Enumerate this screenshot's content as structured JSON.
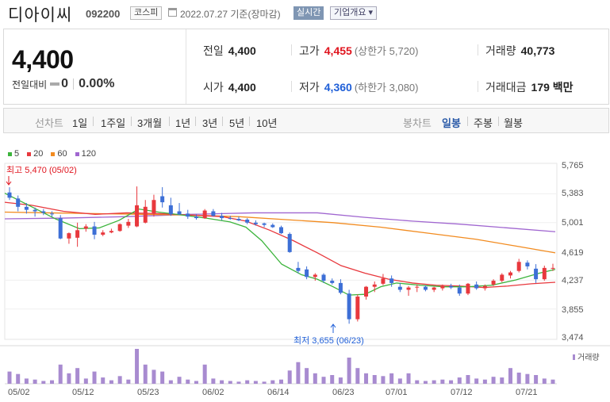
{
  "header": {
    "title": "디아이씨",
    "code": "092200",
    "market": "코스피",
    "date_text": "2022.07.27 기준(장마감)",
    "realtime_label": "실시간",
    "company_label": "기업개요 ▾"
  },
  "summary": {
    "price": "4,400",
    "change_label": "전일대비",
    "change_value": "0",
    "change_rate": "0.00%",
    "prev_close_label": "전일",
    "prev_close": "4,400",
    "open_label": "시가",
    "open": "4,400",
    "high_label": "고가",
    "high": "4,455",
    "upper_limit": "(상한가 5,720)",
    "low_label": "저가",
    "low": "4,360",
    "lower_limit": "(하한가 3,080)",
    "volume_label": "거래량",
    "volume": "40,773",
    "amount_label": "거래대금",
    "amount": "179 백만"
  },
  "tabs": {
    "line_label": "선차트",
    "line_periods": [
      "1일",
      "1주일",
      "3개월",
      "1년",
      "3년",
      "5년",
      "10년"
    ],
    "candle_label": "봉차트",
    "candle_periods": [
      "일봉",
      "주봉",
      "월봉"
    ],
    "selected_candle": "일봉"
  },
  "chart_data": {
    "type": "candlestick",
    "legend": [
      {
        "name": "5",
        "color": "#3cb43c"
      },
      {
        "name": "20",
        "color": "#e8383d"
      },
      {
        "name": "60",
        "color": "#f28b1f"
      },
      {
        "name": "120",
        "color": "#a066d0"
      }
    ],
    "y_ticks": [
      "5,765",
      "5,383",
      "5,001",
      "4,619",
      "4,237",
      "3,855",
      "3,474"
    ],
    "x_ticks": [
      "05/02",
      "05/12",
      "05/23",
      "06/02",
      "06/14",
      "06/23",
      "07/01",
      "07/12",
      "07/21"
    ],
    "high_annotation": "최고 5,470 (05/02)",
    "low_annotation": "최저 3,655 (06/23)",
    "volume_label": "거래량",
    "colors": {
      "up": "#e8383d",
      "down": "#3d6fd6",
      "volume": "#a88bd0"
    }
  }
}
